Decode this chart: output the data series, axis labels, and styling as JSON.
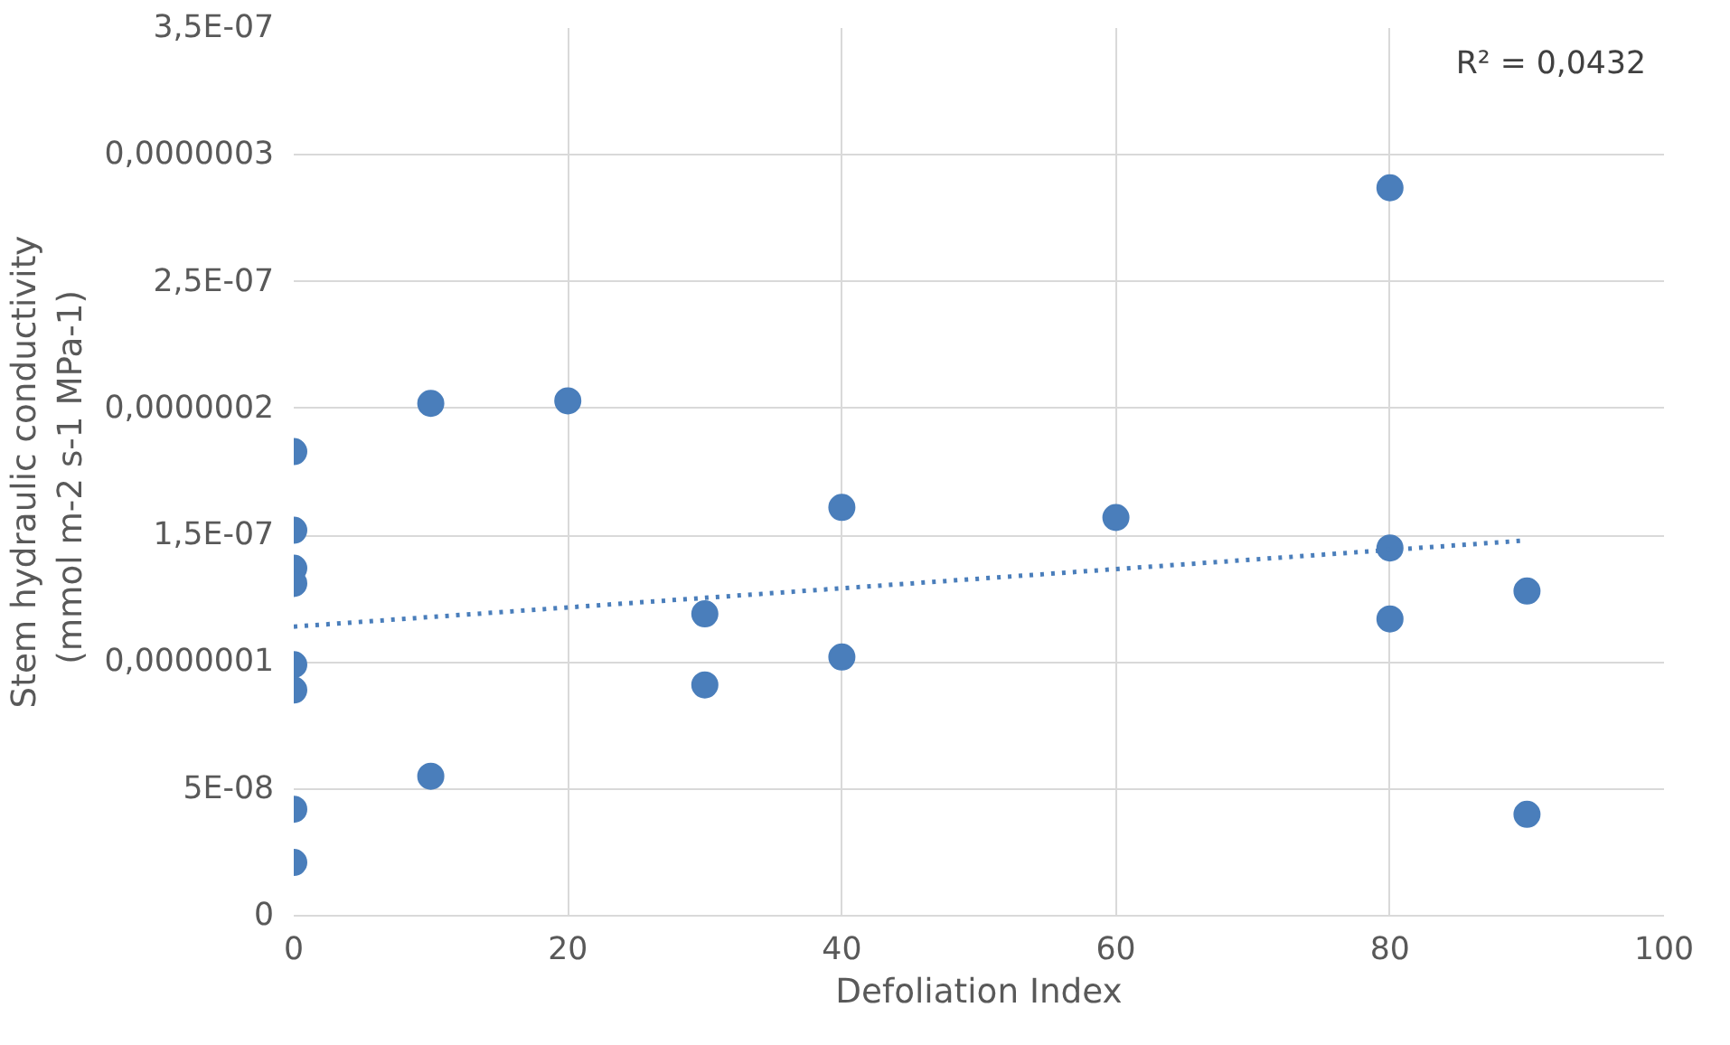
{
  "chart_data": {
    "type": "scatter",
    "xlabel": "Defoliation Index",
    "ylabel": "Stem hydraulic conductivity\n(mmol m-2 s-1  MPa-1)",
    "xlim": [
      0,
      100
    ],
    "xticks": [
      0,
      20,
      40,
      60,
      80,
      100
    ],
    "ylim": [
      0,
      3.5e-07
    ],
    "yticks": [
      0,
      {
        "value": 5e-08,
        "label": "5E-08"
      },
      {
        "value": 1e-07,
        "label": "0,0000001"
      },
      {
        "value": 1.5e-07,
        "label": "1,5E-07"
      },
      {
        "value": 2e-07,
        "label": "0,0000002"
      },
      {
        "value": 2.5e-07,
        "label": "2,5E-07"
      },
      {
        "value": 3e-07,
        "label": "0,0000003"
      },
      {
        "value": 3.5e-07,
        "label": "3,5E-07"
      }
    ],
    "grid": true,
    "marker": "circle",
    "series": [
      {
        "color": "#4a7ebb",
        "x": [
          0,
          0,
          0,
          0,
          0,
          0,
          0,
          0,
          10,
          10,
          20,
          30,
          30,
          40,
          40,
          60,
          80,
          80,
          80,
          90,
          90
        ],
        "values": [
          1.83e-07,
          1.52e-07,
          1.37e-07,
          1.31e-07,
          9.9e-08,
          8.9e-08,
          4.2e-08,
          2.1e-08,
          2.02e-07,
          5.5e-08,
          2.03e-07,
          1.19e-07,
          9.1e-08,
          1.61e-07,
          1.02e-07,
          1.57e-07,
          2.87e-07,
          1.45e-07,
          1.17e-07,
          1.28e-07,
          4e-08
        ]
      },
      {
        "type": "line",
        "color": "#4a7ebb",
        "line_style": "dotted",
        "marker": "none",
        "x": [
          0,
          90
        ],
        "values": [
          1.14e-07,
          1.48e-07
        ]
      }
    ],
    "annotations": [
      "R² = 0,0432"
    ]
  }
}
